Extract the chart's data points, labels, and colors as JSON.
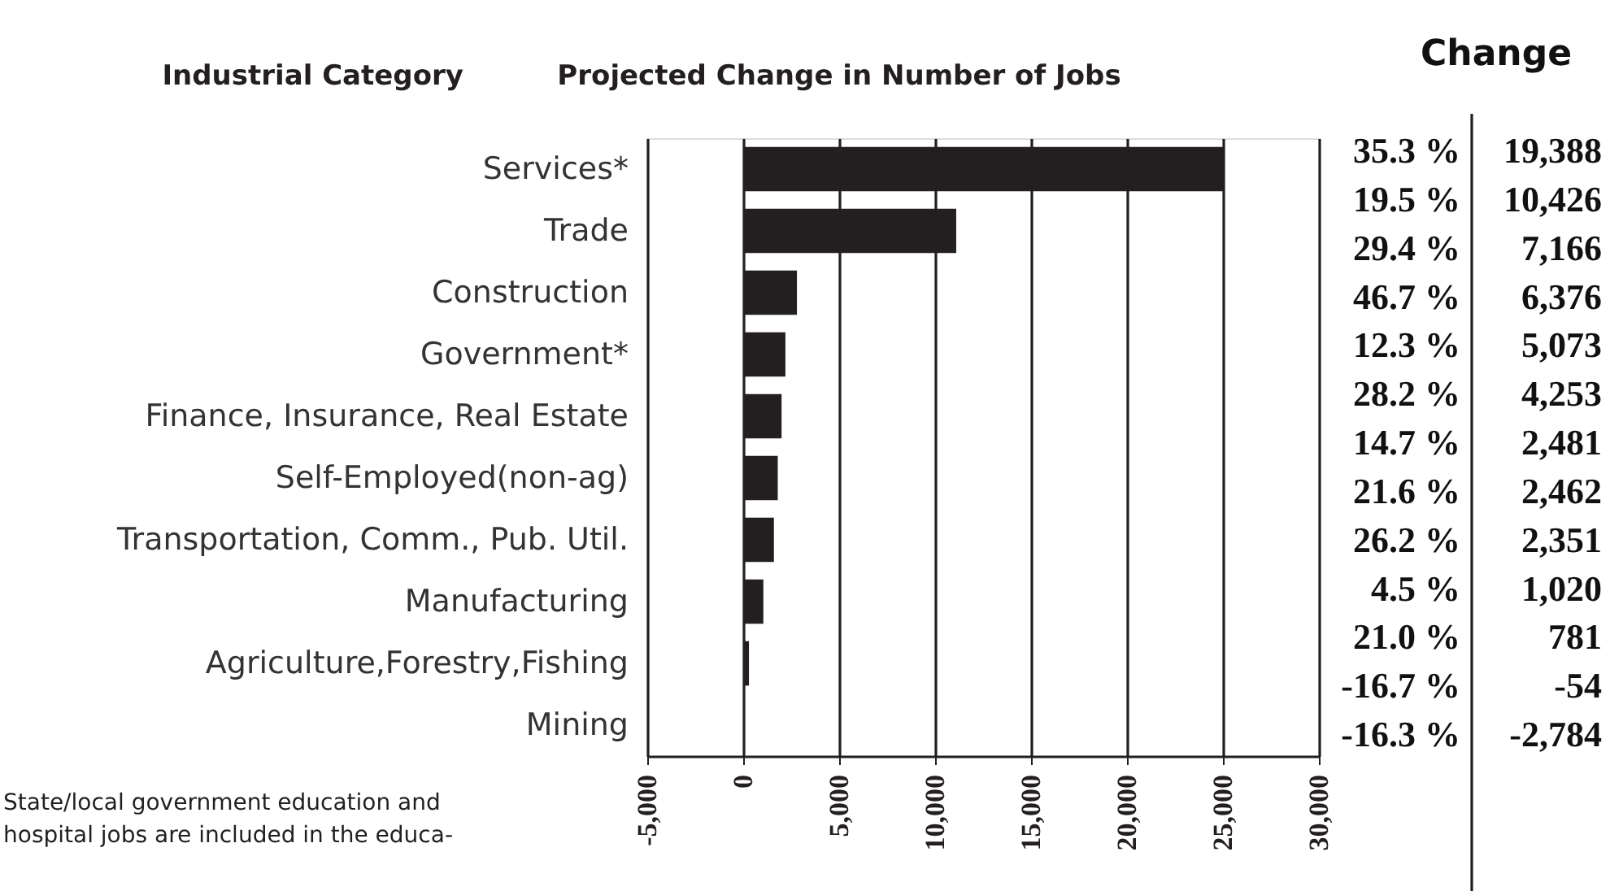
{
  "chart_data": {
    "type": "bar",
    "orientation": "horizontal",
    "title": "Projected Change in Number of Jobs",
    "ylabel": "Industrial Category",
    "categories": [
      "Services*",
      "Trade",
      "Construction",
      "Government*",
      "Finance, Insurance, Real Estate",
      "Self-Employed(non-ag)",
      "Transportation, Comm., Pub. Util.",
      "Manufacturing",
      "Agriculture,Forestry,Fishing",
      "Mining"
    ],
    "values": [
      25000,
      11100,
      2800,
      2200,
      2000,
      1800,
      1600,
      1050,
      300,
      0
    ],
    "color": "#231f20",
    "xlim": [
      -5000,
      30000
    ],
    "xticks": [
      {
        "value": -5000,
        "label": "-5,000"
      },
      0,
      {
        "value": 5000,
        "label": "5,000"
      },
      {
        "value": 10000,
        "label": "10,000"
      },
      {
        "value": 15000,
        "label": "15,000"
      },
      {
        "value": 20000,
        "label": "20,000"
      },
      {
        "value": 25000,
        "label": "25,000"
      },
      {
        "value": 30000,
        "label": "30,000"
      }
    ],
    "grid": "x",
    "annotations": [
      "Change",
      "35.3 %",
      "19.5 %",
      "29.4 %",
      "46.7 %",
      "12.3 %",
      "28.2 %",
      "14.7 %",
      "21.6 %",
      "26.2 %",
      "4.5 %",
      "21.0 %",
      "-16.7 %",
      "-16.3 %",
      "19,388",
      "10,426",
      "7,166",
      "6,376",
      "5,073",
      "4,253",
      "2,481",
      "2,462",
      "2,351",
      "1,020",
      "781",
      "-54",
      "-2,784",
      "State/local government education and\nhospital jobs are included in the educa-"
    ]
  }
}
